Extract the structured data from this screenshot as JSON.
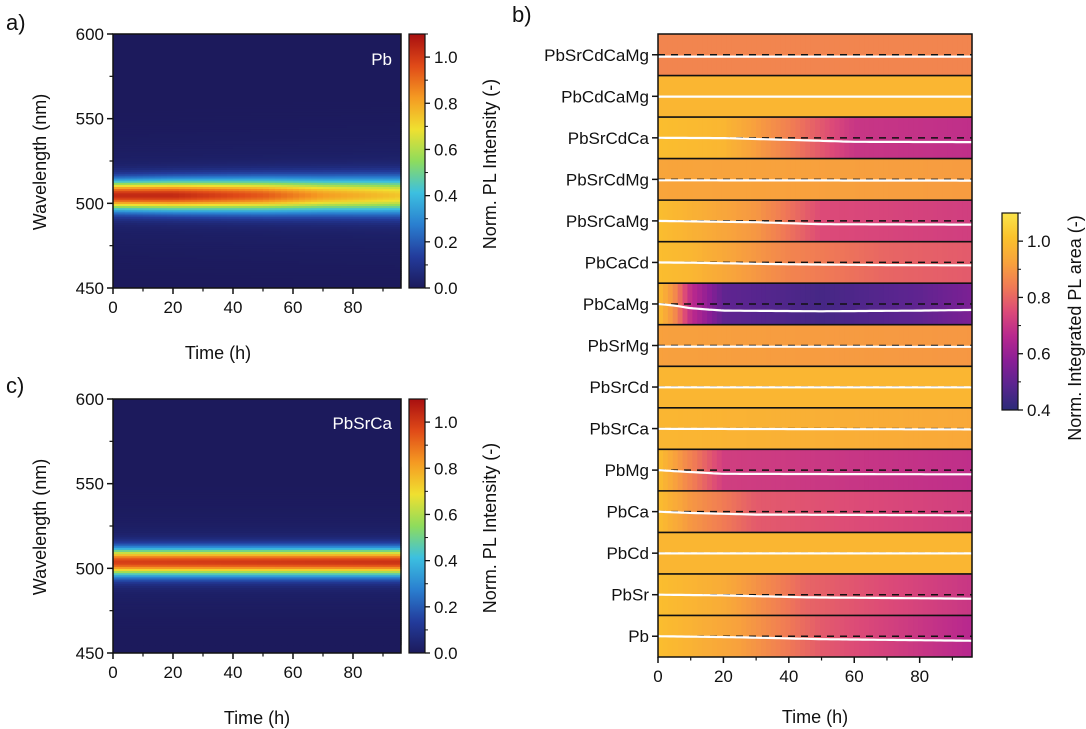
{
  "panels": {
    "a": "a)",
    "b": "b)",
    "c": "c)"
  },
  "chart_data": [
    {
      "id": "a",
      "type": "heatmap",
      "annotation": "Pb",
      "xlabel": "Time (h)",
      "ylabel": "Wavelength (nm)",
      "colorbar_label": "Norm. PL Intensity (-)",
      "xlim": [
        0,
        96
      ],
      "ylim": [
        450,
        600
      ],
      "xticks": [
        0,
        20,
        40,
        60,
        80
      ],
      "yticks": [
        450,
        500,
        550,
        600
      ],
      "colorbar_ticks": [
        "0.0",
        "0.2",
        "0.4",
        "0.6",
        "0.8",
        "1.0"
      ],
      "colorbar_range": [
        0,
        1.1
      ],
      "colormap": [
        "#1c1a5c",
        "#233c9c",
        "#2a7fd0",
        "#3cc0e0",
        "#8edc5c",
        "#f0e030",
        "#f59a22",
        "#e04a18",
        "#a80f10"
      ],
      "profile": {
        "center_nm": [
          {
            "time": 0,
            "value": 505
          },
          {
            "time": 40,
            "value": 505
          },
          {
            "time": 96,
            "value": 505
          }
        ],
        "peak_intensity": [
          {
            "time": 0,
            "value": 1.0
          },
          {
            "time": 20,
            "value": 1.0
          },
          {
            "time": 50,
            "value": 0.9
          },
          {
            "time": 70,
            "value": 0.78
          },
          {
            "time": 96,
            "value": 0.7
          }
        ],
        "fwhm_nm": [
          {
            "time": 0,
            "value": 14
          },
          {
            "time": 96,
            "value": 17
          }
        ]
      }
    },
    {
      "id": "c",
      "type": "heatmap",
      "annotation": "PbSrCa",
      "xlabel": "Time (h)",
      "ylabel": "Wavelength (nm)",
      "colorbar_label": "Norm. PL Intensity (-)",
      "xlim": [
        0,
        96
      ],
      "ylim": [
        450,
        600
      ],
      "xticks": [
        0,
        20,
        40,
        60,
        80
      ],
      "yticks": [
        450,
        500,
        550,
        600
      ],
      "colorbar_ticks": [
        "0.0",
        "0.2",
        "0.4",
        "0.6",
        "0.8",
        "1.0"
      ],
      "colorbar_range": [
        0,
        1.1
      ],
      "colormap": [
        "#1c1a5c",
        "#233c9c",
        "#2a7fd0",
        "#3cc0e0",
        "#8edc5c",
        "#f0e030",
        "#f59a22",
        "#e04a18",
        "#a80f10"
      ],
      "profile": {
        "center_nm": [
          {
            "time": 0,
            "value": 504
          },
          {
            "time": 96,
            "value": 504
          }
        ],
        "peak_intensity": [
          {
            "time": 0,
            "value": 0.95
          },
          {
            "time": 96,
            "value": 0.98
          }
        ],
        "fwhm_nm": [
          {
            "time": 0,
            "value": 13
          },
          {
            "time": 96,
            "value": 13
          }
        ]
      }
    },
    {
      "id": "b",
      "type": "heatmap",
      "xlabel": "Time (h)",
      "colorbar_label": "Norm. Integrated PL  area (-)",
      "xlim": [
        0,
        96
      ],
      "xticks": [
        0,
        20,
        40,
        60,
        80
      ],
      "colorbar_ticks": [
        "0.4",
        "0.6",
        "0.8",
        "1.0"
      ],
      "colorbar_range": [
        0.4,
        1.1
      ],
      "colormap": [
        "#2b2a78",
        "#59258f",
        "#8a1e96",
        "#b8288e",
        "#dc4a78",
        "#f07a55",
        "#f8a33c",
        "#fbc22c",
        "#fbe44a"
      ],
      "rows": [
        {
          "label": "PbSrCdCaMg",
          "series": [
            {
              "time": 0,
              "value": 0.86
            },
            {
              "time": 96,
              "value": 0.86
            }
          ]
        },
        {
          "label": "PbCdCaMg",
          "series": [
            {
              "time": 0,
              "value": 0.98
            },
            {
              "time": 96,
              "value": 0.98
            }
          ]
        },
        {
          "label": "PbSrCdCa",
          "series": [
            {
              "time": 0,
              "value": 1.0
            },
            {
              "time": 20,
              "value": 0.98
            },
            {
              "time": 40,
              "value": 0.85
            },
            {
              "time": 60,
              "value": 0.7
            },
            {
              "time": 96,
              "value": 0.68
            }
          ]
        },
        {
          "label": "PbSrCdMg",
          "series": [
            {
              "time": 0,
              "value": 0.93
            },
            {
              "time": 96,
              "value": 0.91
            }
          ]
        },
        {
          "label": "PbSrCaMg",
          "series": [
            {
              "time": 0,
              "value": 1.0
            },
            {
              "time": 30,
              "value": 0.9
            },
            {
              "time": 50,
              "value": 0.75
            },
            {
              "time": 96,
              "value": 0.72
            }
          ]
        },
        {
          "label": "PbCaCd",
          "series": [
            {
              "time": 0,
              "value": 1.0
            },
            {
              "time": 10,
              "value": 0.98
            },
            {
              "time": 40,
              "value": 0.86
            },
            {
              "time": 70,
              "value": 0.8
            },
            {
              "time": 96,
              "value": 0.78
            }
          ]
        },
        {
          "label": "PbCaMg",
          "series": [
            {
              "time": 0,
              "value": 1.0
            },
            {
              "time": 5,
              "value": 0.88
            },
            {
              "time": 10,
              "value": 0.68
            },
            {
              "time": 20,
              "value": 0.5
            },
            {
              "time": 50,
              "value": 0.45
            },
            {
              "time": 80,
              "value": 0.5
            },
            {
              "time": 96,
              "value": 0.55
            }
          ]
        },
        {
          "label": "PbSrMg",
          "series": [
            {
              "time": 0,
              "value": 0.92
            },
            {
              "time": 96,
              "value": 0.9
            }
          ]
        },
        {
          "label": "PbSrCd",
          "series": [
            {
              "time": 0,
              "value": 0.98
            },
            {
              "time": 96,
              "value": 0.98
            }
          ]
        },
        {
          "label": "PbSrCa",
          "series": [
            {
              "time": 0,
              "value": 0.98
            },
            {
              "time": 96,
              "value": 0.94
            }
          ]
        },
        {
          "label": "PbMg",
          "series": [
            {
              "time": 0,
              "value": 1.0
            },
            {
              "time": 8,
              "value": 0.88
            },
            {
              "time": 20,
              "value": 0.72
            },
            {
              "time": 96,
              "value": 0.68
            }
          ]
        },
        {
          "label": "PbCa",
          "series": [
            {
              "time": 0,
              "value": 1.0
            },
            {
              "time": 10,
              "value": 0.9
            },
            {
              "time": 30,
              "value": 0.78
            },
            {
              "time": 96,
              "value": 0.72
            }
          ]
        },
        {
          "label": "PbCd",
          "series": [
            {
              "time": 0,
              "value": 0.98
            },
            {
              "time": 96,
              "value": 0.98
            }
          ]
        },
        {
          "label": "PbSr",
          "series": [
            {
              "time": 0,
              "value": 1.0
            },
            {
              "time": 20,
              "value": 0.95
            },
            {
              "time": 45,
              "value": 0.8
            },
            {
              "time": 96,
              "value": 0.7
            }
          ]
        },
        {
          "label": "Pb",
          "series": [
            {
              "time": 0,
              "value": 1.0
            },
            {
              "time": 25,
              "value": 0.92
            },
            {
              "time": 50,
              "value": 0.78
            },
            {
              "time": 96,
              "value": 0.66
            }
          ]
        }
      ]
    }
  ]
}
